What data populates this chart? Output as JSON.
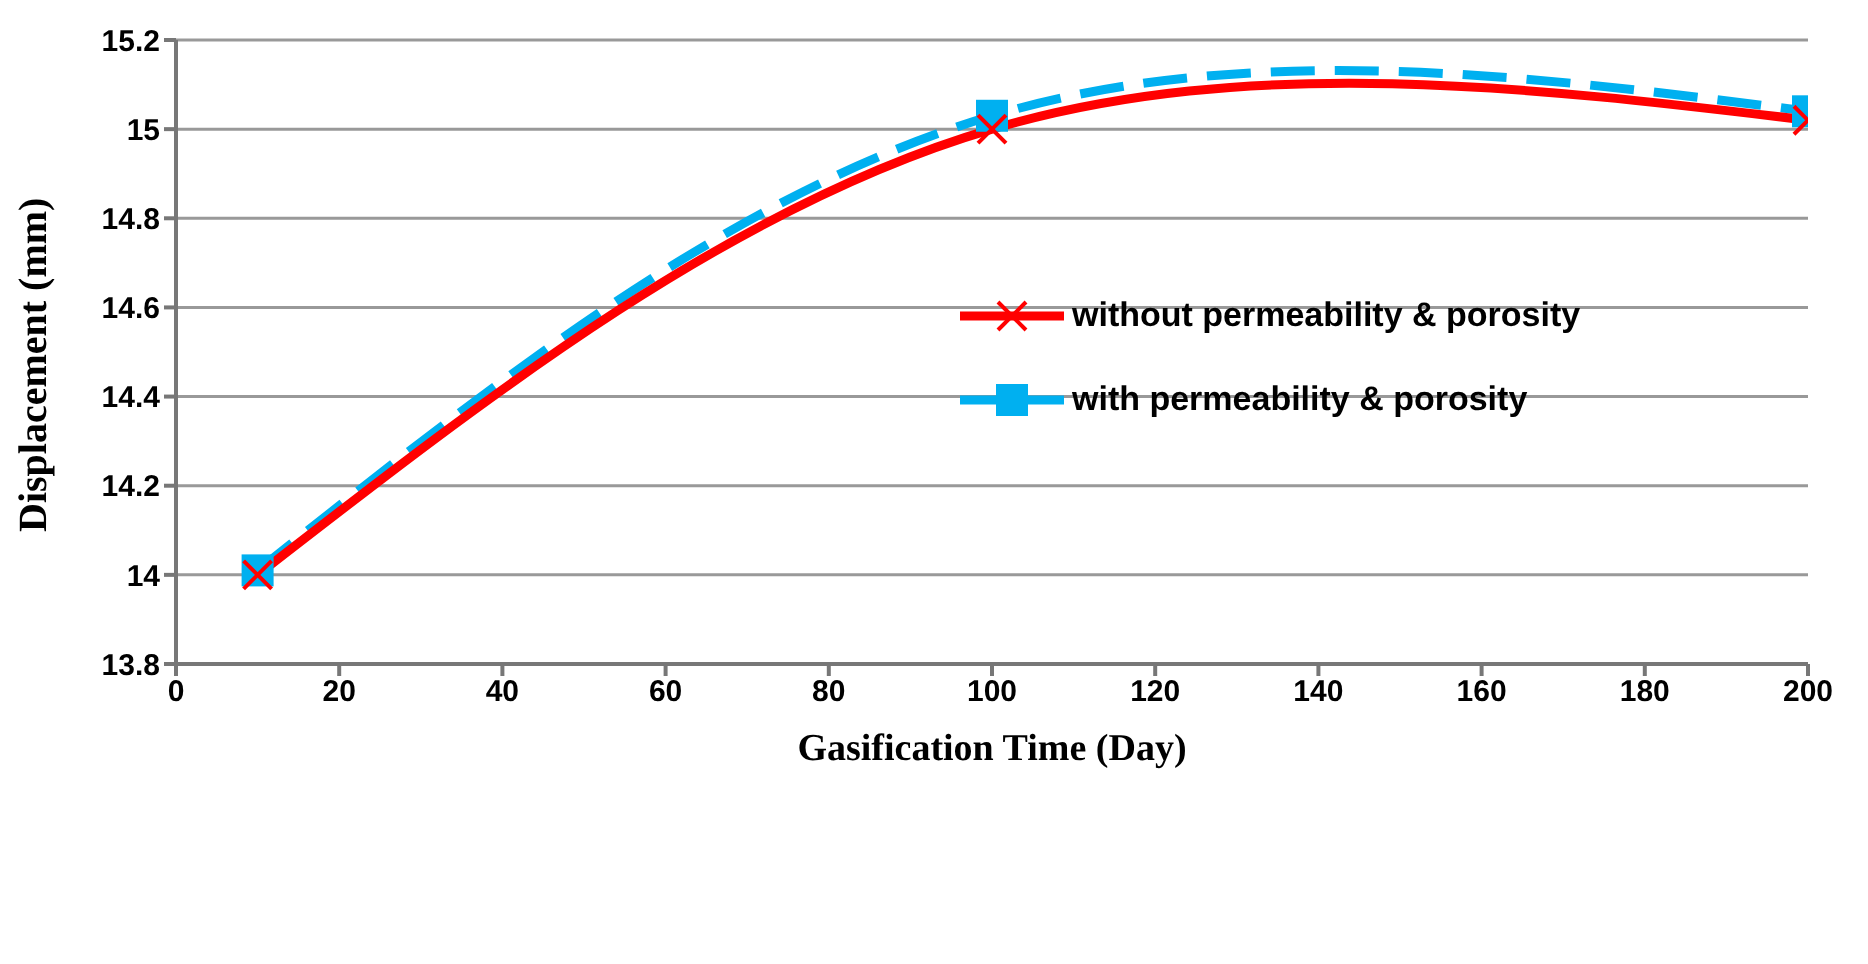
{
  "chart_data": {
    "type": "line",
    "xlabel": "Gasification Time (Day)",
    "ylabel": "Displacement (mm)",
    "x": [
      10,
      100,
      200
    ],
    "series": [
      {
        "name": "without permeability & porosity",
        "color": "#ff0000",
        "values": [
          14.0,
          15.0,
          15.02
        ],
        "marker": "cross",
        "line_style": "solid"
      },
      {
        "name": "with permeability & porosity",
        "color": "#00b0f0",
        "values": [
          14.01,
          15.03,
          15.04
        ],
        "marker": "square",
        "line_style": "dashed"
      }
    ],
    "xlim": [
      0,
      200
    ],
    "xticks": [
      0,
      20,
      40,
      60,
      80,
      100,
      120,
      140,
      160,
      180,
      200
    ],
    "ylim": [
      13.8,
      15.2
    ],
    "yticks": [
      13.8,
      14,
      14.2,
      14.4,
      14.6,
      14.8,
      15,
      15.2
    ],
    "grid": "y",
    "legend": "right"
  }
}
